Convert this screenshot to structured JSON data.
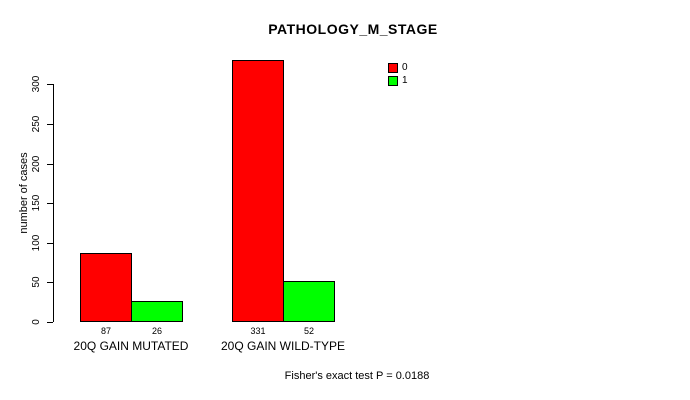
{
  "chart_data": {
    "type": "bar",
    "title": "PATHOLOGY_M_STAGE",
    "xlabel": "",
    "ylabel": "number of cases",
    "yticks": [
      0,
      50,
      100,
      150,
      200,
      250,
      300
    ],
    "ylim": [
      0,
      347
    ],
    "grid": false,
    "legend_position": "top-right",
    "categories": [
      "20Q GAIN MUTATED",
      "20Q GAIN WILD-TYPE"
    ],
    "series": [
      {
        "name": "0",
        "color": "#ff0000",
        "values": [
          87,
          331
        ]
      },
      {
        "name": "1",
        "color": "#00ff00",
        "values": [
          26,
          52
        ]
      }
    ],
    "bar_value_labels": [
      "87",
      "26",
      "331",
      "52"
    ],
    "annotation": "Fisher's exact test P = 0.0188",
    "colors": {
      "axis": "#000000",
      "text": "#000000",
      "background": "#ffffff"
    }
  }
}
